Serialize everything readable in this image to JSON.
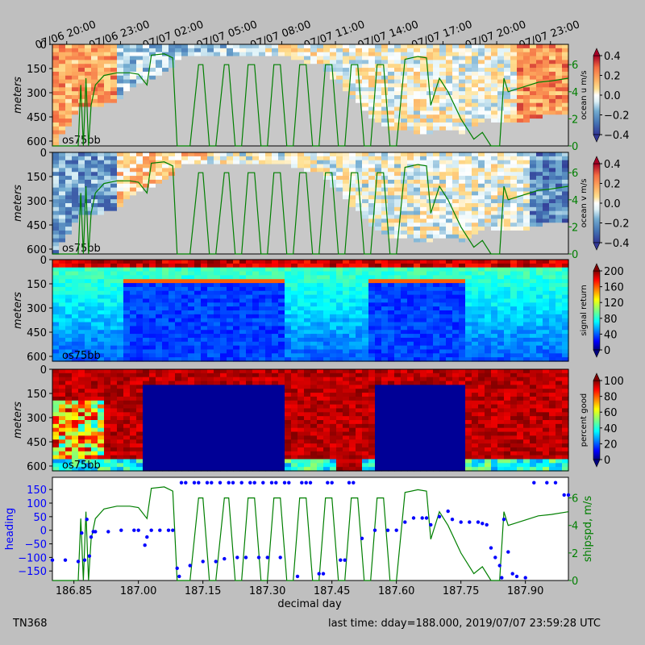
{
  "footer": {
    "cruise": "TN368",
    "last_time": "last time: dday=188.000,  2019/07/07 23:59:28 UTC"
  },
  "top_axis": {
    "tick_labels": [
      "07/06 20:00",
      "07/06 23:00",
      "07/07 02:00",
      "07/07 05:00",
      "07/07 08:00",
      "07/07 11:00",
      "07/07 14:00",
      "07/07 17:00",
      "07/07 20:00",
      "07/07 23:00"
    ],
    "tick_ddays": [
      186.8333,
      186.9583,
      187.0833,
      187.2083,
      187.3333,
      187.4583,
      187.5833,
      187.7083,
      187.8333,
      187.9583
    ]
  },
  "colors": {
    "background": "#bfbfbf",
    "nodata_gray": "#c8c8c8",
    "shipspd_line": "#007f00",
    "heading_points": "#0000ff"
  },
  "chart_data": [
    {
      "type": "heatmap",
      "panel": "ocean-u",
      "instrument_label": "os75bb",
      "ylabel": "meters",
      "y_ticks": [
        0,
        150,
        300,
        450,
        600
      ],
      "ylim": [
        630,
        0
      ],
      "xlim": [
        186.8,
        188.0
      ],
      "colorbar": {
        "label": "ocean u m/s",
        "ticks": [
          -0.4,
          -0.2,
          0.0,
          0.2,
          0.4
        ],
        "tick_labels": [
          "−0.4",
          "−0.2",
          "0.0",
          "0.2",
          "0.4"
        ],
        "range": [
          -0.4,
          0.4
        ],
        "colormap": "RdYlBu_r",
        "extend": "both"
      },
      "right_axis": {
        "ticks": [
          0,
          2,
          4,
          6
        ],
        "ylim": [
          0,
          7.5
        ]
      },
      "overlay_series": "shipspd"
    },
    {
      "type": "heatmap",
      "panel": "ocean-v",
      "instrument_label": "os75bb",
      "ylabel": "meters",
      "y_ticks": [
        0,
        150,
        300,
        450,
        600
      ],
      "ylim": [
        630,
        0
      ],
      "xlim": [
        186.8,
        188.0
      ],
      "colorbar": {
        "label": "ocean v m/s",
        "ticks": [
          -0.4,
          -0.2,
          0.0,
          0.2,
          0.4
        ],
        "tick_labels": [
          "−0.4",
          "−0.2",
          "0.0",
          "0.2",
          "0.4"
        ],
        "range": [
          -0.4,
          0.4
        ],
        "colormap": "RdYlBu_r",
        "extend": "both"
      },
      "right_axis": {
        "ticks": [
          0,
          2,
          4,
          6
        ],
        "ylim": [
          0,
          7.5
        ]
      },
      "overlay_series": "shipspd"
    },
    {
      "type": "heatmap",
      "panel": "signal-return",
      "instrument_label": "os75bb",
      "ylabel": "meters",
      "y_ticks": [
        0,
        150,
        300,
        450,
        600
      ],
      "ylim": [
        630,
        0
      ],
      "xlim": [
        186.8,
        188.0
      ],
      "colorbar": {
        "label": "signal return",
        "ticks": [
          0,
          40,
          80,
          120,
          160,
          200
        ],
        "tick_labels": [
          "0",
          "40",
          "80",
          "120",
          "160",
          "200"
        ],
        "range": [
          0,
          200
        ],
        "colormap": "jet",
        "extend": "both"
      }
    },
    {
      "type": "heatmap",
      "panel": "percent-good",
      "instrument_label": "os75bb",
      "ylabel": "meters",
      "y_ticks": [
        0,
        150,
        300,
        450,
        600
      ],
      "ylim": [
        630,
        0
      ],
      "xlim": [
        186.8,
        188.0
      ],
      "colorbar": {
        "label": "percent good",
        "ticks": [
          0,
          20,
          40,
          60,
          80,
          100
        ],
        "tick_labels": [
          "0",
          "20",
          "40",
          "60",
          "80",
          "100"
        ],
        "range": [
          0,
          100
        ],
        "colormap": "jet",
        "extend": "both"
      }
    },
    {
      "type": "scatter",
      "panel": "heading-shipspd",
      "xlabel": "decimal day",
      "x_ticks": [
        186.85,
        187.0,
        187.15,
        187.3,
        187.45,
        187.6,
        187.75,
        187.9
      ],
      "x_tick_labels": [
        "186.85",
        "187.00",
        "187.15",
        "187.30",
        "187.45",
        "187.60",
        "187.75",
        "187.90"
      ],
      "xlim": [
        186.8,
        188.0
      ],
      "ylabel": "heading",
      "y_ticks": [
        -150,
        -100,
        -50,
        0,
        50,
        100,
        150
      ],
      "y_tick_labels": [
        "−150",
        "−100",
        "−50",
        "0",
        "50",
        "100",
        "150"
      ],
      "ylim": [
        -185,
        195
      ],
      "right_ylabel": "shipspd, m/s",
      "right_ticks": [
        0,
        2,
        4,
        6
      ],
      "right_ylim": [
        0,
        7.5
      ],
      "series": [
        {
          "name": "heading",
          "points": [
            [
              186.8,
              -110
            ],
            [
              186.83,
              -110
            ],
            [
              186.86,
              -115
            ],
            [
              186.868,
              -10
            ],
            [
              186.875,
              -110
            ],
            [
              186.88,
              40
            ],
            [
              186.886,
              -95
            ],
            [
              186.89,
              -25
            ],
            [
              186.895,
              -5
            ],
            [
              186.9,
              -5
            ],
            [
              186.93,
              -5
            ],
            [
              186.96,
              0
            ],
            [
              186.99,
              0
            ],
            [
              187.0,
              0
            ],
            [
              187.015,
              -55
            ],
            [
              187.02,
              -25
            ],
            [
              187.03,
              0
            ],
            [
              187.05,
              0
            ],
            [
              187.07,
              0
            ],
            [
              187.08,
              0
            ],
            [
              187.09,
              -140
            ],
            [
              187.095,
              -170
            ],
            [
              187.1,
              175
            ],
            [
              187.11,
              175
            ],
            [
              187.12,
              -130
            ],
            [
              187.13,
              175
            ],
            [
              187.14,
              175
            ],
            [
              187.15,
              -115
            ],
            [
              187.16,
              175
            ],
            [
              187.17,
              175
            ],
            [
              187.18,
              -115
            ],
            [
              187.19,
              175
            ],
            [
              187.2,
              -105
            ],
            [
              187.21,
              175
            ],
            [
              187.22,
              175
            ],
            [
              187.23,
              -100
            ],
            [
              187.24,
              175
            ],
            [
              187.25,
              -100
            ],
            [
              187.26,
              175
            ],
            [
              187.27,
              175
            ],
            [
              187.28,
              -100
            ],
            [
              187.29,
              175
            ],
            [
              187.3,
              -100
            ],
            [
              187.31,
              175
            ],
            [
              187.32,
              175
            ],
            [
              187.33,
              -100
            ],
            [
              187.34,
              175
            ],
            [
              187.35,
              175
            ],
            [
              187.37,
              -170
            ],
            [
              187.38,
              175
            ],
            [
              187.39,
              175
            ],
            [
              187.4,
              175
            ],
            [
              187.42,
              -160
            ],
            [
              187.43,
              -160
            ],
            [
              187.44,
              175
            ],
            [
              187.45,
              175
            ],
            [
              187.47,
              -110
            ],
            [
              187.48,
              -110
            ],
            [
              187.49,
              175
            ],
            [
              187.5,
              175
            ],
            [
              187.52,
              -30
            ],
            [
              187.55,
              0
            ],
            [
              187.58,
              0
            ],
            [
              187.6,
              0
            ],
            [
              187.62,
              30
            ],
            [
              187.64,
              45
            ],
            [
              187.66,
              45
            ],
            [
              187.67,
              45
            ],
            [
              187.68,
              20
            ],
            [
              187.7,
              50
            ],
            [
              187.72,
              70
            ],
            [
              187.73,
              40
            ],
            [
              187.75,
              30
            ],
            [
              187.77,
              30
            ],
            [
              187.79,
              30
            ],
            [
              187.8,
              25
            ],
            [
              187.81,
              20
            ],
            [
              187.82,
              -65
            ],
            [
              187.83,
              -100
            ],
            [
              187.84,
              -130
            ],
            [
              187.845,
              -175
            ],
            [
              187.85,
              40
            ],
            [
              187.86,
              -80
            ],
            [
              187.87,
              -160
            ],
            [
              187.88,
              -170
            ],
            [
              187.9,
              -175
            ],
            [
              187.92,
              175
            ],
            [
              187.95,
              175
            ],
            [
              187.97,
              175
            ],
            [
              187.99,
              130
            ],
            [
              188.0,
              130
            ]
          ]
        },
        {
          "name": "shipspd",
          "points": [
            [
              186.8,
              0
            ],
            [
              186.86,
              0
            ],
            [
              186.866,
              4.5
            ],
            [
              186.872,
              0
            ],
            [
              186.878,
              5
            ],
            [
              186.884,
              0
            ],
            [
              186.89,
              3
            ],
            [
              186.9,
              4.5
            ],
            [
              186.92,
              5.2
            ],
            [
              186.95,
              5.4
            ],
            [
              186.98,
              5.4
            ],
            [
              187.0,
              5.3
            ],
            [
              187.02,
              4.5
            ],
            [
              187.03,
              6.7
            ],
            [
              187.06,
              6.8
            ],
            [
              187.08,
              6.5
            ],
            [
              187.09,
              0
            ],
            [
              187.12,
              0
            ],
            [
              187.14,
              6
            ],
            [
              187.15,
              6
            ],
            [
              187.165,
              0
            ],
            [
              187.18,
              0
            ],
            [
              187.2,
              6
            ],
            [
              187.21,
              6
            ],
            [
              187.225,
              0
            ],
            [
              187.24,
              0
            ],
            [
              187.255,
              6
            ],
            [
              187.27,
              6
            ],
            [
              187.285,
              0
            ],
            [
              187.3,
              0
            ],
            [
              187.315,
              6
            ],
            [
              187.33,
              6
            ],
            [
              187.345,
              0
            ],
            [
              187.36,
              0
            ],
            [
              187.375,
              6
            ],
            [
              187.39,
              6
            ],
            [
              187.405,
              0
            ],
            [
              187.42,
              0
            ],
            [
              187.435,
              6
            ],
            [
              187.45,
              6
            ],
            [
              187.465,
              0
            ],
            [
              187.48,
              0
            ],
            [
              187.495,
              6
            ],
            [
              187.51,
              6
            ],
            [
              187.525,
              0
            ],
            [
              187.54,
              0
            ],
            [
              187.555,
              6
            ],
            [
              187.57,
              6
            ],
            [
              187.585,
              0
            ],
            [
              187.6,
              0
            ],
            [
              187.62,
              6.4
            ],
            [
              187.65,
              6.6
            ],
            [
              187.67,
              6.5
            ],
            [
              187.68,
              3
            ],
            [
              187.7,
              5
            ],
            [
              187.72,
              4
            ],
            [
              187.75,
              2
            ],
            [
              187.78,
              0.5
            ],
            [
              187.8,
              1
            ],
            [
              187.82,
              0
            ],
            [
              187.84,
              0
            ],
            [
              187.85,
              5
            ],
            [
              187.86,
              4
            ],
            [
              187.88,
              4.2
            ],
            [
              187.9,
              4.4
            ],
            [
              187.93,
              4.7
            ],
            [
              187.96,
              4.8
            ],
            [
              188.0,
              5
            ]
          ]
        }
      ]
    }
  ]
}
